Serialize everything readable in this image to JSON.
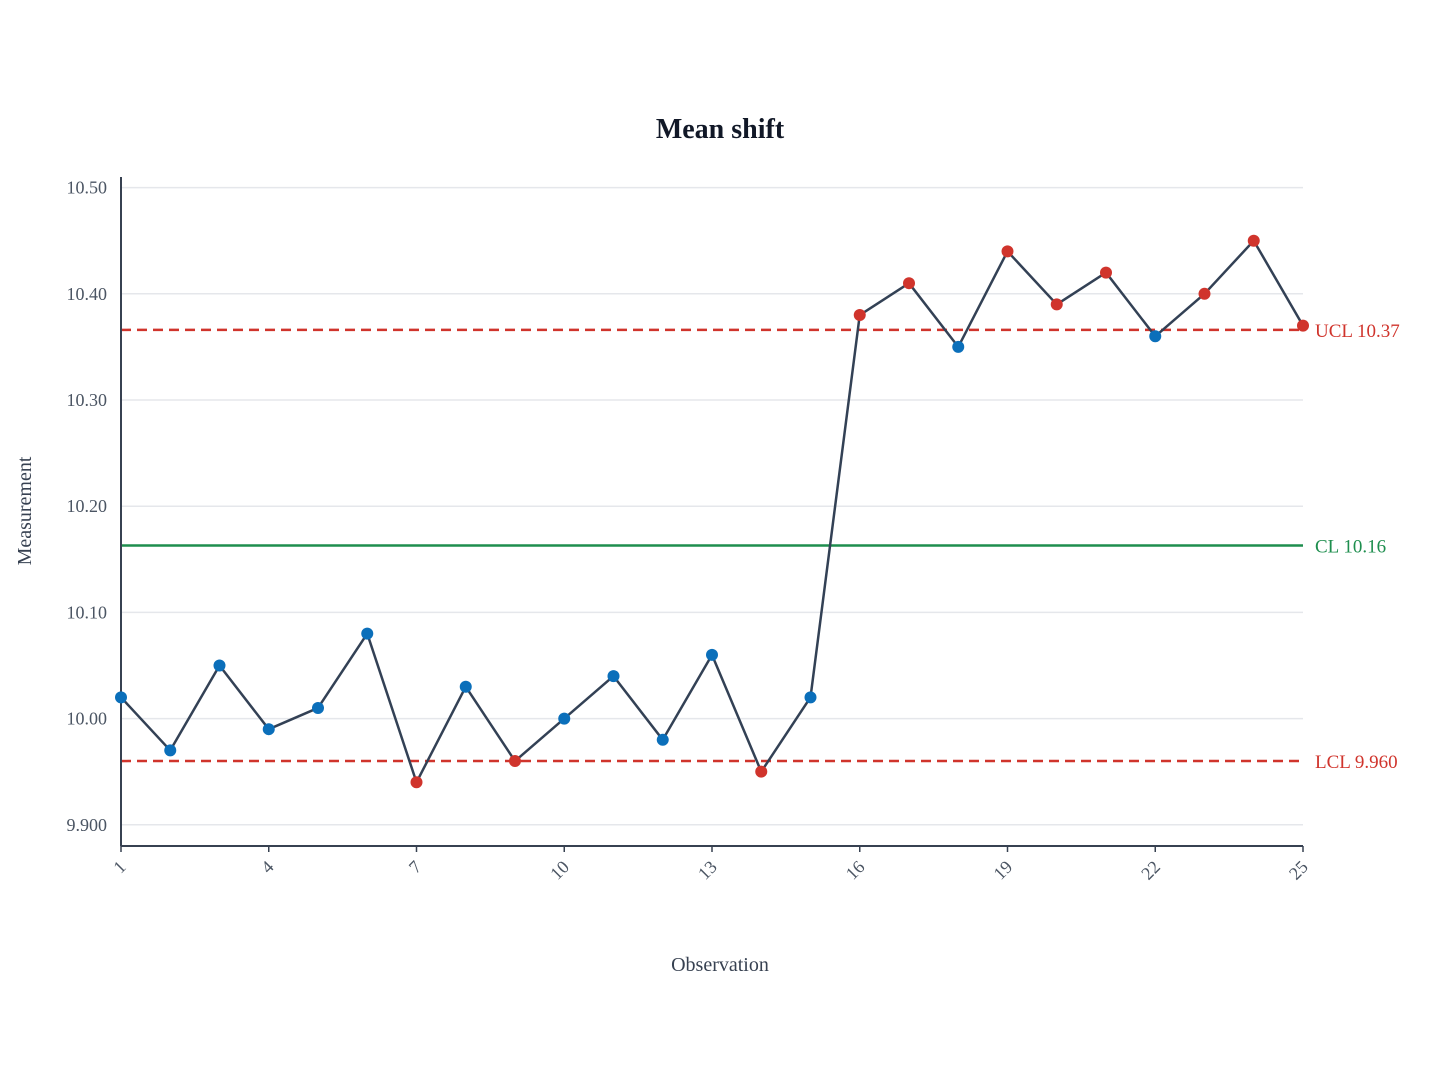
{
  "colors": {
    "text": "#111827",
    "axis": "#374151",
    "tick_text": "#4b5563",
    "grid": "#e5e7eb",
    "line": "#334155",
    "in_control": "#0b6fba",
    "out_of_control": "#d0342c",
    "center_line": "#1e8e4e",
    "limit_line": "#d0342c"
  },
  "chart_data": {
    "type": "line",
    "title": "Mean shift",
    "xlabel": "Observation",
    "ylabel": "Measurement",
    "xlim": [
      1,
      25
    ],
    "ylim": [
      9.88,
      10.51
    ],
    "grid": true,
    "x_ticks": [
      1,
      4,
      7,
      10,
      13,
      16,
      19,
      22,
      25
    ],
    "y_ticks": [
      9.9,
      10.0,
      10.1,
      10.2,
      10.3,
      10.4,
      10.5
    ],
    "y_tick_labels": [
      "9.900",
      "10.00",
      "10.10",
      "10.20",
      "10.30",
      "10.40",
      "10.50"
    ],
    "x": [
      1,
      2,
      3,
      4,
      5,
      6,
      7,
      8,
      9,
      10,
      11,
      12,
      13,
      14,
      15,
      16,
      17,
      18,
      19,
      20,
      21,
      22,
      23,
      24,
      25
    ],
    "values": [
      10.02,
      9.97,
      10.05,
      9.99,
      10.01,
      10.08,
      9.94,
      10.03,
      9.96,
      10.0,
      10.04,
      9.98,
      10.06,
      9.95,
      10.02,
      10.38,
      10.41,
      10.35,
      10.44,
      10.39,
      10.42,
      10.36,
      10.4,
      10.45,
      10.37
    ],
    "flagged": [
      false,
      false,
      false,
      false,
      false,
      false,
      true,
      false,
      true,
      false,
      false,
      false,
      false,
      true,
      false,
      true,
      true,
      false,
      true,
      true,
      true,
      false,
      true,
      true,
      true
    ],
    "control_limits": {
      "ucl": {
        "value": 10.366,
        "label": "UCL 10.37"
      },
      "cl": {
        "value": 10.163,
        "label": "CL 10.16"
      },
      "lcl": {
        "value": 9.96,
        "label": "LCL 9.960"
      }
    }
  }
}
